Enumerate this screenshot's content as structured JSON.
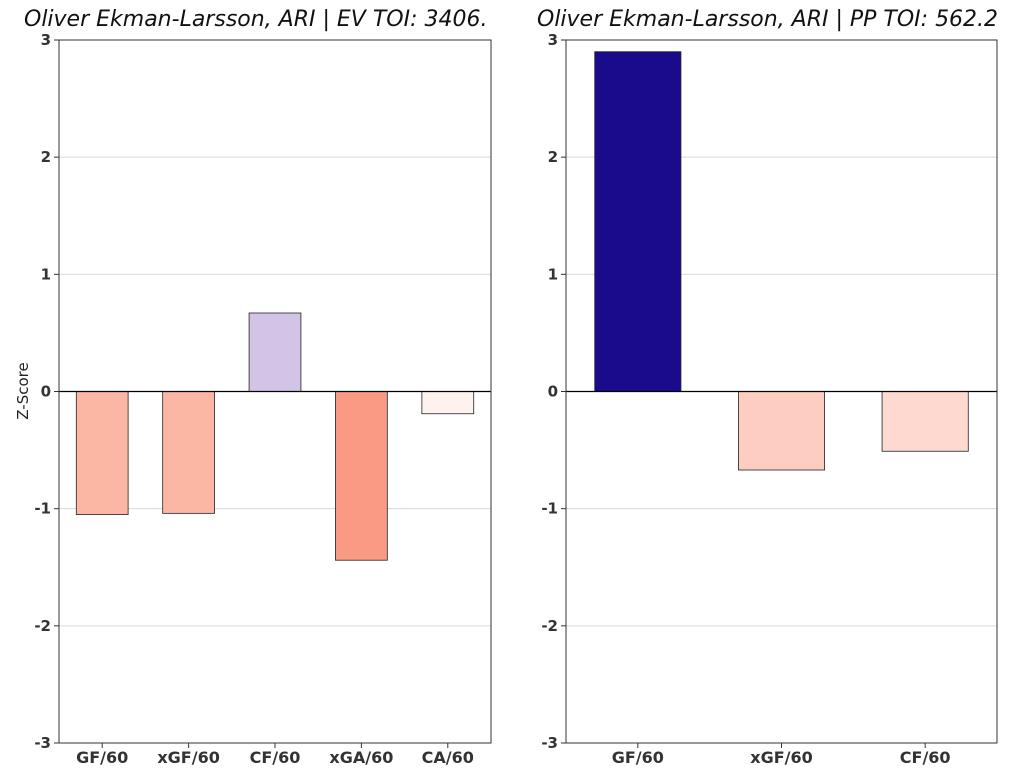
{
  "chart_data": [
    {
      "type": "bar",
      "title": "Oliver Ekman-Larsson, ARI  |  EV TOI: 3406.",
      "ylabel": "Z-Score",
      "xlabel": "",
      "ylim": [
        -3,
        3
      ],
      "yticks": [
        -3,
        -2,
        -1,
        0,
        1,
        2,
        3
      ],
      "grid": true,
      "categories": [
        "GF/60",
        "xGF/60",
        "CF/60",
        "xGA/60",
        "CA/60"
      ],
      "values": [
        -1.05,
        -1.04,
        0.67,
        -1.44,
        -0.19
      ],
      "colors": [
        "#fcb7a4",
        "#fcb7a4",
        "#d2c4e6",
        "#f99a84",
        "#fef2ee"
      ]
    },
    {
      "type": "bar",
      "title": "Oliver Ekman-Larsson, ARI  |  PP TOI: 562.2",
      "ylabel": "",
      "xlabel": "",
      "ylim": [
        -3,
        3
      ],
      "yticks": [
        -3,
        -2,
        -1,
        0,
        1,
        2,
        3
      ],
      "grid": true,
      "categories": [
        "GF/60",
        "xGF/60",
        "CF/60"
      ],
      "values": [
        2.9,
        -0.67,
        -0.51
      ],
      "colors": [
        "#1a0a8c",
        "#fdcdc1",
        "#fdd9cf"
      ]
    }
  ]
}
